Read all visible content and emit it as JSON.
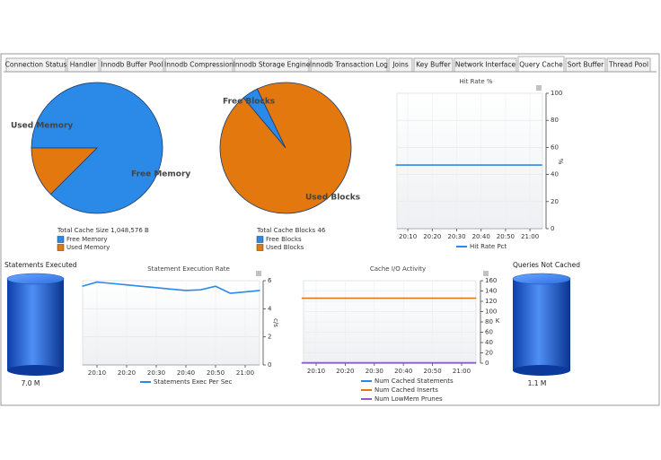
{
  "tabs": [
    "Connection Status",
    "Handler",
    "Innodb Buffer Pool",
    "Innodb Compression",
    "Innodb Storage Engine",
    "Innodb Transaction Log",
    "Joins",
    "Key Buffer",
    "Network Interface",
    "Query Cache",
    "Sort Buffer",
    "Thread Pool"
  ],
  "chart_data": [
    {
      "type": "pie",
      "caption": "Total Cache Size 1,048,576 B",
      "categories": [
        "Free Memory",
        "Used Memory"
      ],
      "values": [
        87.5,
        12.5
      ],
      "colors": [
        "#2b8ae8",
        "#e3780e"
      ]
    },
    {
      "type": "pie",
      "caption": "Total Cache Blocks 46",
      "categories": [
        "Free Blocks",
        "Used Blocks"
      ],
      "values": [
        4,
        96
      ],
      "colors": [
        "#2b8ae8",
        "#e3780e"
      ]
    },
    {
      "type": "line",
      "title": "Hit Rate %",
      "ylabel": "%",
      "categories": [
        null,
        "20:10",
        null,
        "20:20",
        null,
        "20:30",
        null,
        "20:40",
        null,
        "20:50",
        null,
        "21:00",
        null
      ],
      "ylim": [
        0,
        100
      ],
      "yticks": [
        0,
        20,
        40,
        60,
        80,
        100
      ],
      "series": [
        {
          "name": "Hit Rate Pct",
          "color": "#2b8ae8",
          "values": [
            47,
            47,
            47,
            47,
            47,
            47,
            47,
            47,
            47,
            47,
            47,
            47,
            47
          ]
        }
      ]
    },
    {
      "type": "line",
      "title": "Statement Execution Rate",
      "ylabel": "c/s",
      "categories": [
        null,
        "20:10",
        null,
        "20:20",
        null,
        "20:30",
        null,
        "20:40",
        null,
        "20:50",
        null,
        "21:00",
        null
      ],
      "ylim": [
        0,
        6
      ],
      "yticks": [
        0,
        2,
        4,
        6
      ],
      "series": [
        {
          "name": "Statements Exec Per Sec",
          "color": "#2b8ae8",
          "values": [
            5.6,
            5.9,
            5.8,
            5.7,
            5.6,
            5.5,
            5.4,
            5.3,
            5.35,
            5.6,
            5.1,
            5.2,
            5.3
          ]
        }
      ]
    },
    {
      "type": "line",
      "title": "Cache I/O Activity",
      "ylabel": "K",
      "categories": [
        null,
        "20:10",
        null,
        "20:20",
        null,
        "20:30",
        null,
        "20:40",
        null,
        "20:50",
        null,
        "21:00",
        null
      ],
      "ylim": [
        0,
        160
      ],
      "yticks": [
        0,
        20,
        40,
        60,
        80,
        100,
        120,
        140,
        160
      ],
      "series": [
        {
          "name": "Num Cached Statements",
          "color": "#2b8ae8",
          "values": [
            0.8,
            0.8,
            0.8,
            0.8,
            0.8,
            0.8,
            0.8,
            0.8,
            0.8,
            0.8,
            0.8,
            0.8,
            0.8
          ]
        },
        {
          "name": "Num Cached Inserts",
          "color": "#e3780e",
          "values": [
            126,
            126,
            126,
            126,
            126,
            126,
            126,
            126,
            126,
            126,
            126,
            126,
            126
          ]
        },
        {
          "name": "Num LowMem Prunes",
          "color": "#8a5cc7",
          "values": [
            0.3,
            0.3,
            0.3,
            0.3,
            0.3,
            0.3,
            0.3,
            0.3,
            0.3,
            0.3,
            0.3,
            0.3,
            0.3
          ]
        }
      ]
    }
  ],
  "gauges": [
    {
      "title": "Statements Executed",
      "value_label": "7.0 M"
    },
    {
      "title": "Queries Not Cached",
      "value_label": "1.1 M"
    }
  ]
}
